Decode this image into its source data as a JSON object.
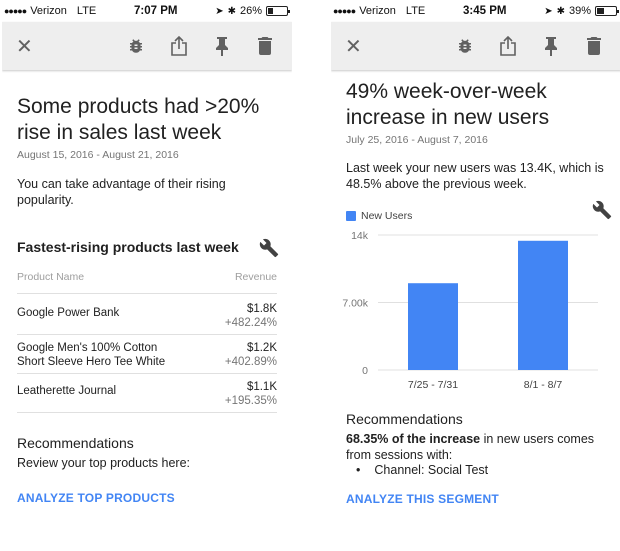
{
  "left": {
    "status": {
      "carrier": "Verizon",
      "network": "LTE",
      "time": "7:07 PM",
      "battery": "26%",
      "battery_level": 0.26
    },
    "toolbar": {
      "close_icon": "close-icon",
      "icons": [
        "bug-icon",
        "share-icon",
        "pin-icon",
        "trash-icon"
      ]
    },
    "title": "Some products had >20% rise in sales last week",
    "date_range": "August 15, 2016 - August 21, 2016",
    "intro": "You can take advantage of their rising popularity.",
    "section_title": "Fastest-rising products last week",
    "table": {
      "col_product": "Product Name",
      "col_revenue": "Revenue",
      "rows": [
        {
          "name": "Google Power Bank",
          "value": "$1.8K",
          "change": "+482.24%"
        },
        {
          "name": "Google Men's 100% Cotton Short Sleeve Hero Tee White",
          "value": "$1.2K",
          "change": "+402.89%"
        },
        {
          "name": "Leatherette Journal",
          "value": "$1.1K",
          "change": "+195.35%"
        }
      ]
    },
    "rec_title": "Recommendations",
    "rec_text": "Review your top products here:",
    "action": "ANALYZE TOP PRODUCTS"
  },
  "right": {
    "status": {
      "carrier": "Verizon",
      "network": "LTE",
      "time": "3:45 PM",
      "battery": "39%",
      "battery_level": 0.39
    },
    "toolbar": {
      "close_icon": "close-icon",
      "icons": [
        "bug-icon",
        "share-icon",
        "pin-icon",
        "trash-icon"
      ]
    },
    "title": "49% week-over-week increase in new users",
    "date_range": "July 25, 2016 - August 7, 2016",
    "intro": "Last week your new users was 13.4K, which is 48.5% above the previous week.",
    "rec_title": "Recommendations",
    "rec_bold": "68.35% of the increase",
    "rec_rest": " in new users comes from sessions with:",
    "rec_item": "Channel: Social Test",
    "action": "ANALYZE THIS SEGMENT"
  },
  "chart_data": {
    "type": "bar",
    "categories": [
      "7/25 - 7/31",
      "8/1 - 8/7"
    ],
    "series": [
      {
        "name": "New Users",
        "values": [
          9000,
          13400
        ]
      }
    ],
    "ytick_labels": [
      "0",
      "7.00k",
      "14k"
    ],
    "ylim": [
      0,
      14000
    ],
    "legend": "top-left",
    "grid": true
  },
  "colors": {
    "accent": "#4285f4",
    "bar": "#4285f4",
    "toolbar": "#eeeeee",
    "wrench": "#424242"
  }
}
